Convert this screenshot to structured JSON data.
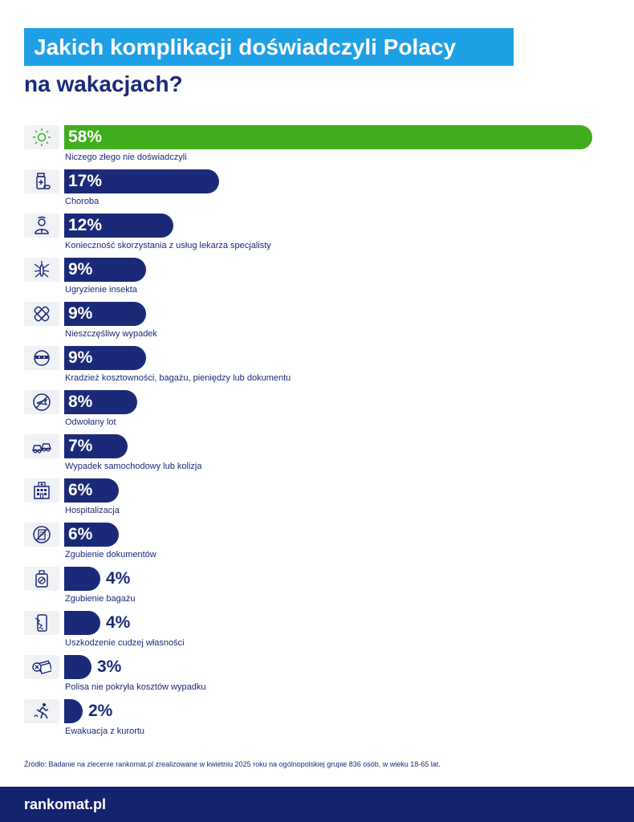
{
  "title": {
    "line1": "Jakich komplikacji doświadczyli Polacy",
    "line2": "na wakacjach?"
  },
  "colors": {
    "accent_blue": "#1ea0e6",
    "navy": "#1b2a78",
    "green": "#3fad1d",
    "footer": "#14236e"
  },
  "chart_data": {
    "type": "bar",
    "orientation": "horizontal",
    "unit": "%",
    "xlim": [
      0,
      58
    ],
    "categories": [
      "Niczego złego nie doświadczyli",
      "Choroba",
      "Konieczność skorzystania z usług lekarza specjalisty",
      "Ugryzienie insekta",
      "Nieszczęśliwy wypadek",
      "Kradzież kosztowności, bagażu, pieniędzy lub dokumentu",
      "Odwołany lot",
      "Wypadek samochodowy lub kolizja",
      "Hospitalizacja",
      "Zgubienie dokumentów",
      "Zgubienie bagażu",
      "Uszkodzenie cudzej własności",
      "Polisa nie pokryła kosztów wypadku",
      "Ewakuacja z kurortu"
    ],
    "values": [
      58,
      17,
      12,
      9,
      9,
      9,
      8,
      7,
      6,
      6,
      4,
      4,
      3,
      2
    ],
    "value_labels": [
      "58%",
      "17%",
      "12%",
      "9%",
      "9%",
      "9%",
      "8%",
      "7%",
      "6%",
      "6%",
      "4%",
      "4%",
      "3%",
      "2%"
    ],
    "bar_colors": [
      "#3fad1d",
      "#1b2a78",
      "#1b2a78",
      "#1b2a78",
      "#1b2a78",
      "#1b2a78",
      "#1b2a78",
      "#1b2a78",
      "#1b2a78",
      "#1b2a78",
      "#1b2a78",
      "#1b2a78",
      "#1b2a78",
      "#1b2a78"
    ],
    "icons": [
      "sun-icon",
      "medicine-icon",
      "doctor-icon",
      "mosquito-icon",
      "bandage-icon",
      "thief-icon",
      "plane-icon",
      "car-crash-icon",
      "hospital-icon",
      "document-icon",
      "luggage-icon",
      "phone-crack-icon",
      "money-cancel-icon",
      "running-person-icon"
    ]
  },
  "source": "Źródło:  Badanie na zlecenie rankomat.pl zrealizowane w kwietniu 2025 roku na ogólnopolskiej grupie 836 osób, w wieku 18-65 lat.",
  "footer": {
    "logo": "rankomat.pl"
  }
}
